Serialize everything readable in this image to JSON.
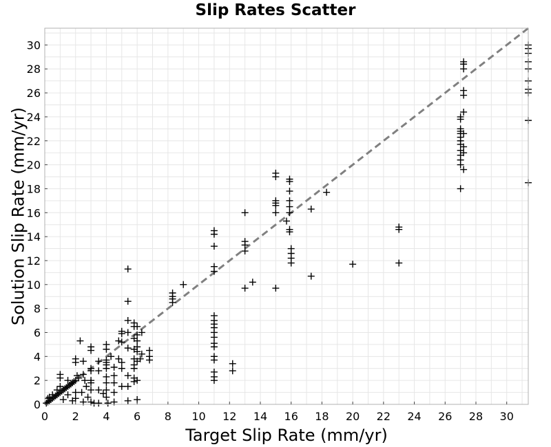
{
  "chart_data": {
    "type": "scatter",
    "title": "Slip Rates Scatter",
    "xlabel": "Target Slip Rate (mm/yr)",
    "ylabel": "Solution Slip Rate (mm/yr)",
    "xlim": [
      0,
      31.4
    ],
    "ylim": [
      0,
      31.4
    ],
    "xticks": [
      "0",
      "2",
      "4",
      "6",
      "8",
      "10",
      "12",
      "14",
      "16",
      "18",
      "20",
      "22",
      "24",
      "26",
      "28",
      "30"
    ],
    "yticks": [
      "0",
      "2",
      "4",
      "6",
      "8",
      "10",
      "12",
      "14",
      "16",
      "18",
      "20",
      "22",
      "24",
      "26",
      "28",
      "30"
    ],
    "grid": true,
    "marker": "+",
    "reference_line": {
      "style": "dashed",
      "color": "#808080",
      "from": [
        0,
        0
      ],
      "to": [
        31.4,
        31.4
      ]
    },
    "series": [
      {
        "color": "#000000",
        "points": [
          [
            0.1,
            0.1
          ],
          [
            0.2,
            0.2
          ],
          [
            0.2,
            0.5
          ],
          [
            0.3,
            0.3
          ],
          [
            0.3,
            0.6
          ],
          [
            0.4,
            0.4
          ],
          [
            0.5,
            0.5
          ],
          [
            0.5,
            0.8
          ],
          [
            0.6,
            0.6
          ],
          [
            0.7,
            0.7
          ],
          [
            0.8,
            0.8
          ],
          [
            0.8,
            1.2
          ],
          [
            0.9,
            0.9
          ],
          [
            1.0,
            1.0
          ],
          [
            1.0,
            1.5
          ],
          [
            1.0,
            2.2
          ],
          [
            1.0,
            2.5
          ],
          [
            1.1,
            1.1
          ],
          [
            1.2,
            1.2
          ],
          [
            1.2,
            0.4
          ],
          [
            1.3,
            1.3
          ],
          [
            1.4,
            1.4
          ],
          [
            1.5,
            1.5
          ],
          [
            1.5,
            0.8
          ],
          [
            1.5,
            2.0
          ],
          [
            1.6,
            1.6
          ],
          [
            1.7,
            1.7
          ],
          [
            1.8,
            1.8
          ],
          [
            1.8,
            0.3
          ],
          [
            1.9,
            1.9
          ],
          [
            2.0,
            2.0
          ],
          [
            2.0,
            1.0
          ],
          [
            2.0,
            0.5
          ],
          [
            2.0,
            3.5
          ],
          [
            2.0,
            3.8
          ],
          [
            2.1,
            2.4
          ],
          [
            2.2,
            2.2
          ],
          [
            2.3,
            5.3
          ],
          [
            2.4,
            1.0
          ],
          [
            2.5,
            2.5
          ],
          [
            2.5,
            3.6
          ],
          [
            2.5,
            0.2
          ],
          [
            2.6,
            2.0
          ],
          [
            2.7,
            1.5
          ],
          [
            2.8,
            0.6
          ],
          [
            3.0,
            4.8
          ],
          [
            3.0,
            4.5
          ],
          [
            3.0,
            3.0
          ],
          [
            3.0,
            2.8
          ],
          [
            3.0,
            2.0
          ],
          [
            3.0,
            1.8
          ],
          [
            3.0,
            1.2
          ],
          [
            3.0,
            0.2
          ],
          [
            3.2,
            0.1
          ],
          [
            3.5,
            3.6
          ],
          [
            3.5,
            2.8
          ],
          [
            3.5,
            1.2
          ],
          [
            3.5,
            0.1
          ],
          [
            3.8,
            0.9
          ],
          [
            4.0,
            5.0
          ],
          [
            4.0,
            4.6
          ],
          [
            4.0,
            3.7
          ],
          [
            4.0,
            3.5
          ],
          [
            4.0,
            3.3
          ],
          [
            4.0,
            3.0
          ],
          [
            4.0,
            2.3
          ],
          [
            4.0,
            1.8
          ],
          [
            4.0,
            1.2
          ],
          [
            4.0,
            0.6
          ],
          [
            4.1,
            0.1
          ],
          [
            4.3,
            4.0
          ],
          [
            4.5,
            3.1
          ],
          [
            4.5,
            2.4
          ],
          [
            4.5,
            1.8
          ],
          [
            4.5,
            1.0
          ],
          [
            4.5,
            0.2
          ],
          [
            4.8,
            5.3
          ],
          [
            4.8,
            3.8
          ],
          [
            5.0,
            6.1
          ],
          [
            5.0,
            5.9
          ],
          [
            5.0,
            5.2
          ],
          [
            5.0,
            3.5
          ],
          [
            5.0,
            3.0
          ],
          [
            5.0,
            1.5
          ],
          [
            5.4,
            11.3
          ],
          [
            5.4,
            8.6
          ],
          [
            5.4,
            7.0
          ],
          [
            5.4,
            6.0
          ],
          [
            5.4,
            4.7
          ],
          [
            5.4,
            2.4
          ],
          [
            5.4,
            1.5
          ],
          [
            5.4,
            0.3
          ],
          [
            5.8,
            6.8
          ],
          [
            5.8,
            6.5
          ],
          [
            5.8,
            5.5
          ],
          [
            5.8,
            4.6
          ],
          [
            5.8,
            3.8
          ],
          [
            5.8,
            3.3
          ],
          [
            5.8,
            3.0
          ],
          [
            5.8,
            2.2
          ],
          [
            5.8,
            1.9
          ],
          [
            6.0,
            6.5
          ],
          [
            6.0,
            5.8
          ],
          [
            6.0,
            5.3
          ],
          [
            6.0,
            4.8
          ],
          [
            6.0,
            4.4
          ],
          [
            6.0,
            3.6
          ],
          [
            6.0,
            2.0
          ],
          [
            6.0,
            0.4
          ],
          [
            6.2,
            3.8
          ],
          [
            6.3,
            4.2
          ],
          [
            6.3,
            6.0
          ],
          [
            6.8,
            4.5
          ],
          [
            6.8,
            4.0
          ],
          [
            6.8,
            3.7
          ],
          [
            8.3,
            9.3
          ],
          [
            8.3,
            9.0
          ],
          [
            8.3,
            8.8
          ],
          [
            8.3,
            8.5
          ],
          [
            9.0,
            10.0
          ],
          [
            11.0,
            14.5
          ],
          [
            11.0,
            14.2
          ],
          [
            11.0,
            13.2
          ],
          [
            11.0,
            11.5
          ],
          [
            11.0,
            11.1
          ],
          [
            11.0,
            7.4
          ],
          [
            11.0,
            7.0
          ],
          [
            11.0,
            6.7
          ],
          [
            11.0,
            6.4
          ],
          [
            11.0,
            6.0
          ],
          [
            11.0,
            5.6
          ],
          [
            11.0,
            5.1
          ],
          [
            11.0,
            4.8
          ],
          [
            11.0,
            4.0
          ],
          [
            11.0,
            3.7
          ],
          [
            11.0,
            2.7
          ],
          [
            11.0,
            2.3
          ],
          [
            11.0,
            2.0
          ],
          [
            12.2,
            3.4
          ],
          [
            12.2,
            2.8
          ],
          [
            13.0,
            16.0
          ],
          [
            13.0,
            13.6
          ],
          [
            13.0,
            13.3
          ],
          [
            13.0,
            12.8
          ],
          [
            13.0,
            9.7
          ],
          [
            13.5,
            10.2
          ],
          [
            15.0,
            19.3
          ],
          [
            15.0,
            19.0
          ],
          [
            15.0,
            17.0
          ],
          [
            15.0,
            16.8
          ],
          [
            15.0,
            16.6
          ],
          [
            15.0,
            16.0
          ],
          [
            15.0,
            9.7
          ],
          [
            15.7,
            15.3
          ],
          [
            15.9,
            18.8
          ],
          [
            15.9,
            18.6
          ],
          [
            15.9,
            17.8
          ],
          [
            15.9,
            17.0
          ],
          [
            15.9,
            16.5
          ],
          [
            15.9,
            16.0
          ],
          [
            15.9,
            14.6
          ],
          [
            15.9,
            14.4
          ],
          [
            16.0,
            13.0
          ],
          [
            16.0,
            12.6
          ],
          [
            16.0,
            12.2
          ],
          [
            16.0,
            11.8
          ],
          [
            17.3,
            16.3
          ],
          [
            17.3,
            10.7
          ],
          [
            18.3,
            17.7
          ],
          [
            20.0,
            11.7
          ],
          [
            23.0,
            14.8
          ],
          [
            23.0,
            14.6
          ],
          [
            23.0,
            11.8
          ],
          [
            27.0,
            24.0
          ],
          [
            27.0,
            23.8
          ],
          [
            27.0,
            23.0
          ],
          [
            27.0,
            22.8
          ],
          [
            27.0,
            22.6
          ],
          [
            27.0,
            22.3
          ],
          [
            27.0,
            22.0
          ],
          [
            27.0,
            21.7
          ],
          [
            27.0,
            21.2
          ],
          [
            27.0,
            20.8
          ],
          [
            27.0,
            20.4
          ],
          [
            27.0,
            20.0
          ],
          [
            27.0,
            18.0
          ],
          [
            27.2,
            28.6
          ],
          [
            27.2,
            28.4
          ],
          [
            27.2,
            28.0
          ],
          [
            27.2,
            26.2
          ],
          [
            27.2,
            25.8
          ],
          [
            27.2,
            24.4
          ],
          [
            27.2,
            22.6
          ],
          [
            27.2,
            21.5
          ],
          [
            27.2,
            21.0
          ],
          [
            27.2,
            19.6
          ],
          [
            31.4,
            30.0
          ],
          [
            31.4,
            29.7
          ],
          [
            31.4,
            29.3
          ],
          [
            31.4,
            28.6
          ],
          [
            31.4,
            28.0
          ],
          [
            31.4,
            27.0
          ],
          [
            31.4,
            26.3
          ],
          [
            31.4,
            26.0
          ],
          [
            31.4,
            23.7
          ],
          [
            31.4,
            18.5
          ]
        ]
      }
    ]
  }
}
